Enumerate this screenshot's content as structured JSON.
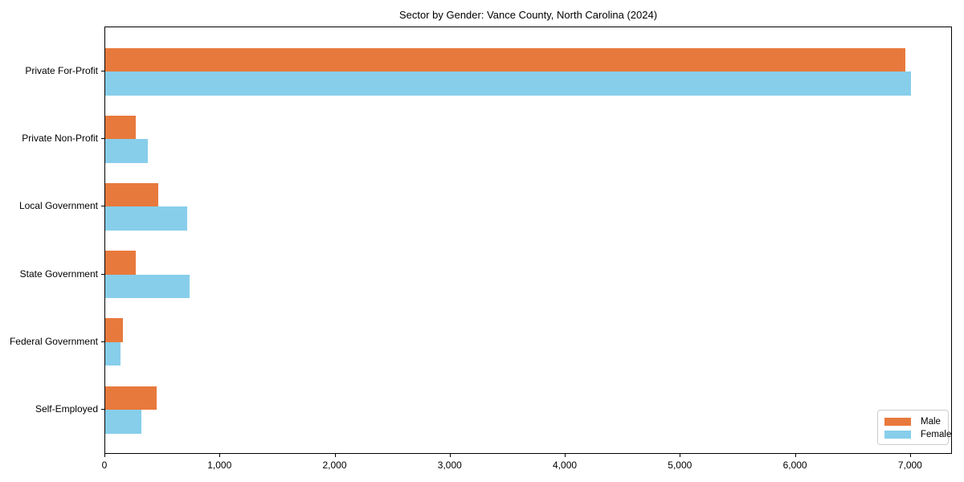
{
  "chart_data": {
    "type": "bar",
    "orientation": "horizontal",
    "title": "Sector by Gender: Vance County, North Carolina (2024)",
    "categories": [
      "Private For-Profit",
      "Private Non-Profit",
      "Local Government",
      "State Government",
      "Federal Government",
      "Self-Employed"
    ],
    "series": [
      {
        "name": "Male",
        "color": "#e8793c",
        "values": [
          6950,
          265,
          460,
          265,
          155,
          445
        ]
      },
      {
        "name": "Female",
        "color": "#87ceeb",
        "values": [
          7000,
          370,
          715,
          730,
          135,
          315
        ]
      }
    ],
    "xlabel": "",
    "ylabel": "",
    "xlim": [
      0,
      7350
    ],
    "x_ticks": [
      0,
      1000,
      2000,
      3000,
      4000,
      5000,
      6000,
      7000
    ],
    "x_tick_labels": [
      "0",
      "1,000",
      "2,000",
      "3,000",
      "4,000",
      "5,000",
      "6,000",
      "7,000"
    ],
    "grid": false,
    "legend": {
      "position": "lower right",
      "entries": [
        "Male",
        "Female"
      ]
    }
  }
}
